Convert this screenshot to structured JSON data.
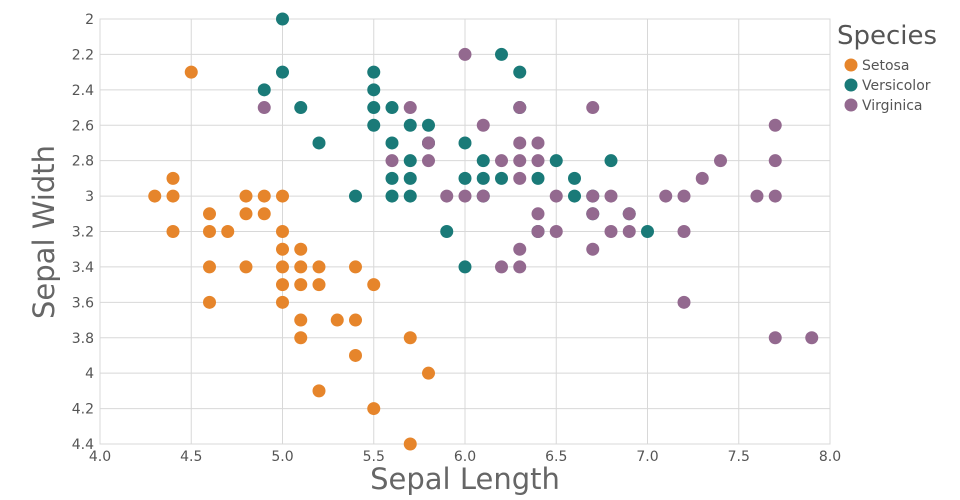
{
  "chart_data": {
    "type": "scatter",
    "xlabel": "Sepal Length",
    "ylabel": "Sepal Width",
    "xlim": [
      4.0,
      8.0
    ],
    "ylim": [
      2.0,
      4.4
    ],
    "y_inverted": true,
    "grid": true,
    "x_ticks": [
      "4.0",
      "4.5",
      "5.0",
      "5.5",
      "6.0",
      "6.5",
      "7.0",
      "7.5",
      "8.0"
    ],
    "y_ticks": [
      "2",
      "2.2",
      "2.4",
      "2.6",
      "2.8",
      "3",
      "3.2",
      "3.4",
      "3.6",
      "3.8",
      "4",
      "4.2",
      "4.4"
    ],
    "legend": {
      "title": "Species",
      "placement": "top-right"
    },
    "series": [
      {
        "name": "Setosa",
        "color": "#e6852b",
        "points": [
          [
            4.5,
            2.3
          ],
          [
            4.3,
            3.0
          ],
          [
            4.4,
            2.9
          ],
          [
            4.4,
            3.0
          ],
          [
            4.4,
            3.2
          ],
          [
            4.6,
            3.1
          ],
          [
            4.6,
            3.2
          ],
          [
            4.6,
            3.4
          ],
          [
            4.6,
            3.6
          ],
          [
            4.7,
            3.2
          ],
          [
            4.8,
            3.0
          ],
          [
            4.8,
            3.1
          ],
          [
            4.8,
            3.4
          ],
          [
            4.9,
            3.0
          ],
          [
            4.9,
            3.1
          ],
          [
            5.0,
            3.0
          ],
          [
            5.0,
            3.2
          ],
          [
            5.0,
            3.3
          ],
          [
            5.0,
            3.4
          ],
          [
            5.0,
            3.5
          ],
          [
            5.0,
            3.6
          ],
          [
            5.1,
            3.3
          ],
          [
            5.1,
            3.4
          ],
          [
            5.1,
            3.5
          ],
          [
            5.1,
            3.7
          ],
          [
            5.1,
            3.8
          ],
          [
            5.2,
            3.4
          ],
          [
            5.2,
            3.5
          ],
          [
            5.2,
            4.1
          ],
          [
            5.3,
            3.7
          ],
          [
            5.4,
            3.4
          ],
          [
            5.4,
            3.7
          ],
          [
            5.4,
            3.9
          ],
          [
            5.5,
            3.5
          ],
          [
            5.5,
            4.2
          ],
          [
            5.7,
            3.8
          ],
          [
            5.7,
            4.4
          ],
          [
            5.8,
            4.0
          ]
        ]
      },
      {
        "name": "Versicolor",
        "color": "#1a7a78",
        "points": [
          [
            5.0,
            2.0
          ],
          [
            5.0,
            2.3
          ],
          [
            4.9,
            2.4
          ],
          [
            5.1,
            2.5
          ],
          [
            5.2,
            2.7
          ],
          [
            5.4,
            3.0
          ],
          [
            5.5,
            2.3
          ],
          [
            5.5,
            2.4
          ],
          [
            5.5,
            2.5
          ],
          [
            5.5,
            2.6
          ],
          [
            5.6,
            2.5
          ],
          [
            5.6,
            2.7
          ],
          [
            5.6,
            2.9
          ],
          [
            5.6,
            3.0
          ],
          [
            5.7,
            2.6
          ],
          [
            5.7,
            2.8
          ],
          [
            5.7,
            2.9
          ],
          [
            5.7,
            3.0
          ],
          [
            5.8,
            2.6
          ],
          [
            5.8,
            2.7
          ],
          [
            5.9,
            3.2
          ],
          [
            6.0,
            2.7
          ],
          [
            6.0,
            2.9
          ],
          [
            6.0,
            3.4
          ],
          [
            6.1,
            2.8
          ],
          [
            6.1,
            2.9
          ],
          [
            6.1,
            3.0
          ],
          [
            6.2,
            2.2
          ],
          [
            6.2,
            2.9
          ],
          [
            6.3,
            2.3
          ],
          [
            6.3,
            2.5
          ],
          [
            6.4,
            2.9
          ],
          [
            6.4,
            3.2
          ],
          [
            6.5,
            2.8
          ],
          [
            6.6,
            2.9
          ],
          [
            6.6,
            3.0
          ],
          [
            6.7,
            3.0
          ],
          [
            6.7,
            3.1
          ],
          [
            6.8,
            2.8
          ],
          [
            6.9,
            3.1
          ],
          [
            7.0,
            3.2
          ]
        ]
      },
      {
        "name": "Virginica",
        "color": "#93698f",
        "points": [
          [
            4.9,
            2.5
          ],
          [
            5.7,
            2.5
          ],
          [
            5.6,
            2.8
          ],
          [
            5.8,
            2.7
          ],
          [
            5.8,
            2.8
          ],
          [
            5.9,
            3.0
          ],
          [
            6.0,
            2.2
          ],
          [
            6.0,
            3.0
          ],
          [
            6.1,
            2.6
          ],
          [
            6.1,
            3.0
          ],
          [
            6.2,
            2.8
          ],
          [
            6.2,
            3.4
          ],
          [
            6.3,
            2.5
          ],
          [
            6.3,
            2.7
          ],
          [
            6.3,
            2.8
          ],
          [
            6.3,
            2.9
          ],
          [
            6.3,
            3.3
          ],
          [
            6.3,
            3.4
          ],
          [
            6.4,
            2.7
          ],
          [
            6.4,
            2.8
          ],
          [
            6.4,
            3.1
          ],
          [
            6.4,
            3.2
          ],
          [
            6.5,
            3.0
          ],
          [
            6.5,
            3.2
          ],
          [
            6.7,
            2.5
          ],
          [
            6.7,
            3.0
          ],
          [
            6.7,
            3.1
          ],
          [
            6.7,
            3.3
          ],
          [
            6.8,
            3.0
          ],
          [
            6.8,
            3.2
          ],
          [
            6.9,
            3.1
          ],
          [
            6.9,
            3.2
          ],
          [
            7.1,
            3.0
          ],
          [
            7.2,
            3.0
          ],
          [
            7.2,
            3.2
          ],
          [
            7.2,
            3.6
          ],
          [
            7.3,
            2.9
          ],
          [
            7.4,
            2.8
          ],
          [
            7.6,
            3.0
          ],
          [
            7.7,
            2.6
          ],
          [
            7.7,
            2.8
          ],
          [
            7.7,
            3.0
          ],
          [
            7.7,
            3.8
          ],
          [
            7.9,
            3.8
          ]
        ]
      }
    ]
  }
}
